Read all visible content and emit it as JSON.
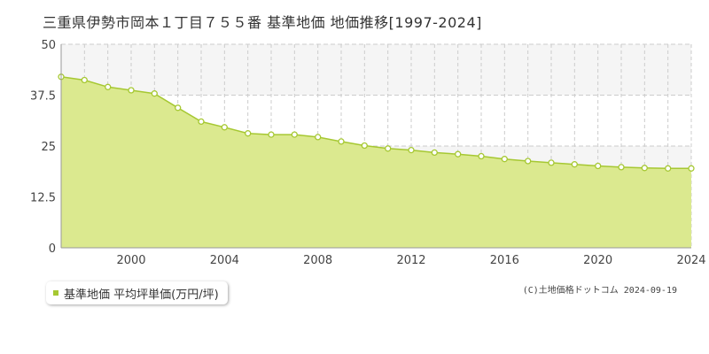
{
  "title": "三重県伊勢市岡本１丁目７５５番 基準地価 地価推移[1997-2024]",
  "legend": {
    "label": "基準地価 平均坪単価(万円/坪)"
  },
  "copyright": "(C)土地価格ドットコム 2024-09-19",
  "colors": {
    "area_fill": "#dbe98f",
    "line": "#a6c832",
    "marker_fill": "#ffffff",
    "marker_stroke": "#a6c832",
    "grid": "#cccccc",
    "band": "#f5f5f5",
    "axis_text": "#444444"
  },
  "chart_data": {
    "type": "area",
    "title": "三重県伊勢市岡本１丁目７５５番 基準地価 地価推移[1997-2024]",
    "xlabel": "",
    "ylabel": "",
    "x": [
      1997,
      1998,
      1999,
      2000,
      2001,
      2002,
      2003,
      2004,
      2005,
      2006,
      2007,
      2008,
      2009,
      2010,
      2011,
      2012,
      2013,
      2014,
      2015,
      2016,
      2017,
      2018,
      2019,
      2020,
      2021,
      2022,
      2023,
      2024
    ],
    "series": [
      {
        "name": "基準地価 平均坪単価(万円/坪)",
        "values": [
          42.0,
          41.2,
          39.5,
          38.7,
          37.9,
          34.4,
          31.0,
          29.6,
          28.1,
          27.8,
          27.8,
          27.2,
          26.1,
          25.1,
          24.4,
          24.0,
          23.4,
          23.0,
          22.5,
          21.8,
          21.3,
          20.9,
          20.5,
          20.1,
          19.8,
          19.6,
          19.5,
          19.5
        ]
      }
    ],
    "xlim": [
      1997,
      2024
    ],
    "ylim": [
      0,
      50
    ],
    "x_ticks": [
      "2000",
      "2004",
      "2008",
      "2012",
      "2016",
      "2020",
      "2024"
    ],
    "y_ticks": [
      "0",
      "12.5",
      "25",
      "37.5",
      "50"
    ],
    "grid": true,
    "legend_position": "bottom-left"
  }
}
